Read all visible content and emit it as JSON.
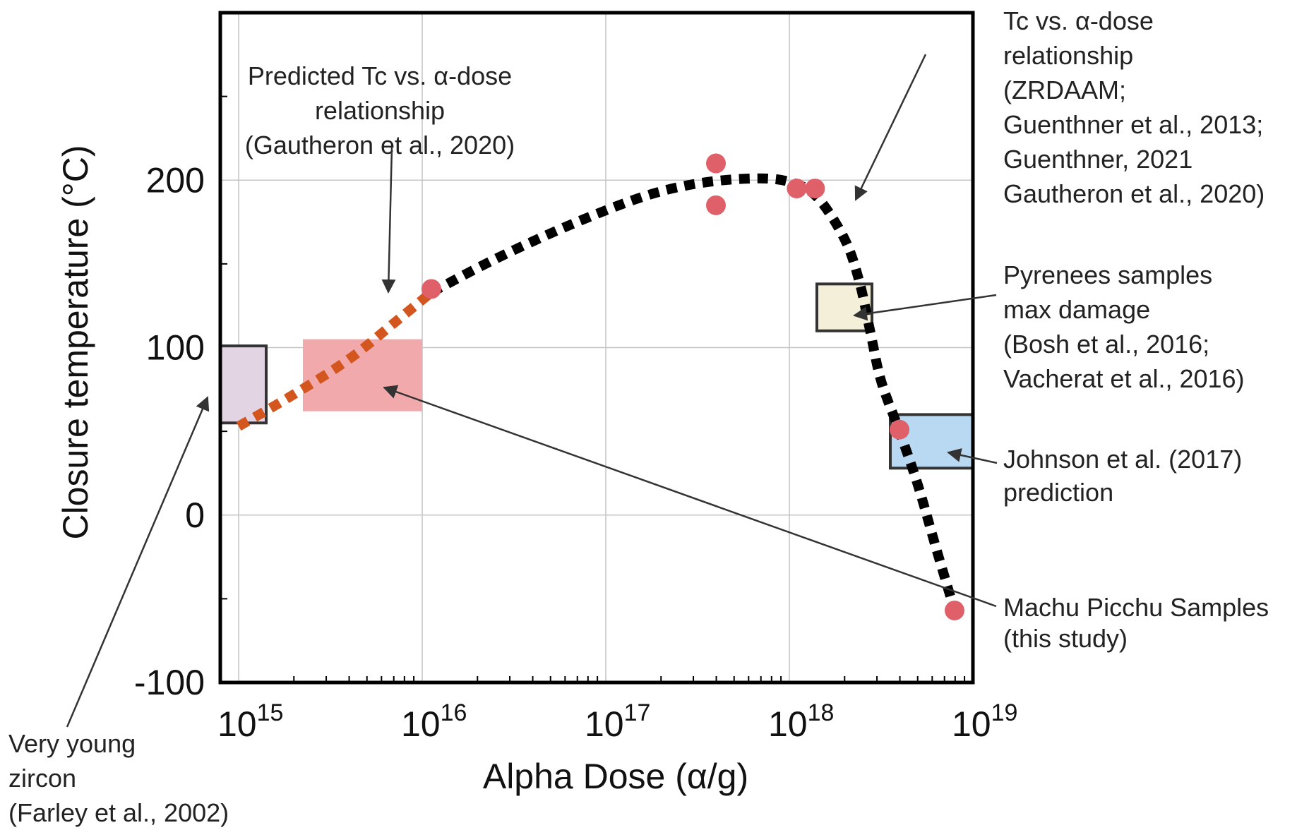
{
  "chart_data": {
    "type": "scatter",
    "xlabel": "Alpha Dose (α/g)",
    "ylabel": "Closure temperature (°C)",
    "xscale": "log10",
    "xlim_exponent": [
      14.9,
      19.0
    ],
    "ylim": [
      -100,
      300
    ],
    "grid": true,
    "xticks": [
      {
        "base": "10",
        "exp": "15",
        "value": 15
      },
      {
        "base": "10",
        "exp": "16",
        "value": 16
      },
      {
        "base": "10",
        "exp": "17",
        "value": 17
      },
      {
        "base": "10",
        "exp": "18",
        "value": 18
      },
      {
        "base": "10",
        "exp": "19",
        "value": 19
      }
    ],
    "yticks": [
      {
        "label": "-100",
        "value": -100
      },
      {
        "label": "0",
        "value": 0
      },
      {
        "label": "100",
        "value": 100
      },
      {
        "label": "200",
        "value": 200
      }
    ],
    "points": {
      "name": "Machu Picchu Samples (this study)",
      "color": "#e0606a",
      "data": [
        {
          "log_dose": 16.05,
          "tc": 135
        },
        {
          "log_dose": 17.6,
          "tc": 210
        },
        {
          "log_dose": 17.6,
          "tc": 185
        },
        {
          "log_dose": 18.04,
          "tc": 195
        },
        {
          "log_dose": 18.14,
          "tc": 195
        },
        {
          "log_dose": 18.6,
          "tc": 51
        },
        {
          "log_dose": 18.9,
          "tc": -57
        }
      ]
    },
    "curves": [
      {
        "name": "Predicted Tc vs. α-dose relationship (Gautheron et al., 2020)",
        "color": "#d4561f",
        "style": "dotted",
        "data": [
          [
            15.0,
            53
          ],
          [
            15.3,
            72
          ],
          [
            15.6,
            93
          ],
          [
            15.85,
            115
          ],
          [
            16.05,
            133
          ]
        ]
      },
      {
        "name": "Tc vs. α-dose relationship (ZRDAAM)",
        "color": "#000000",
        "style": "dotted",
        "data": [
          [
            16.05,
            133
          ],
          [
            16.4,
            153
          ],
          [
            16.8,
            173
          ],
          [
            17.2,
            190
          ],
          [
            17.5,
            198
          ],
          [
            17.8,
            201
          ],
          [
            18.0,
            199
          ],
          [
            18.15,
            190
          ],
          [
            18.3,
            165
          ],
          [
            18.38,
            140
          ],
          [
            18.44,
            110
          ],
          [
            18.5,
            80
          ],
          [
            18.6,
            50
          ],
          [
            18.7,
            18
          ],
          [
            18.8,
            -20
          ],
          [
            18.9,
            -57
          ]
        ]
      }
    ],
    "regions": [
      {
        "name": "Very young zircon (Farley et al., 2002)",
        "log_x": [
          14.9,
          15.15
        ],
        "y": [
          55,
          101
        ],
        "fill": "#e2d4e2",
        "stroke": "#333333"
      },
      {
        "name": "Predicted range",
        "log_x": [
          15.35,
          16.0
        ],
        "y": [
          62,
          105
        ],
        "fill": "#f2a9ab",
        "stroke": "none"
      },
      {
        "name": "Pyrenees samples max damage",
        "log_x": [
          18.15,
          18.45
        ],
        "y": [
          110,
          138
        ],
        "fill": "#f3efd8",
        "stroke": "#333333"
      },
      {
        "name": "Johnson et al. (2017) prediction",
        "log_x": [
          18.55,
          19.0
        ],
        "y": [
          28,
          60
        ],
        "fill": "#b9d8f1",
        "stroke": "#333333"
      }
    ],
    "annotations": [
      {
        "id": "gautheron",
        "lines": [
          "Predicted Tc vs. α-dose",
          "relationship",
          "(Gautheron et al., 2020)"
        ]
      },
      {
        "id": "zrdaam",
        "lines": [
          "Tc vs. α-dose",
          "relationship",
          "(ZRDAAM;",
          "Guenthner et al., 2013;",
          "Guenthner, 2021",
          "Gautheron et al., 2020)"
        ]
      },
      {
        "id": "pyrenees",
        "lines": [
          "Pyrenees samples",
          "max damage",
          "(Bosh et al., 2016;",
          "Vacherat et al., 2016)"
        ]
      },
      {
        "id": "johnson",
        "lines": [
          "Johnson et al. (2017)",
          "prediction"
        ]
      },
      {
        "id": "machu",
        "lines": [
          "Machu Picchu Samples",
          "(this study)"
        ]
      },
      {
        "id": "young",
        "lines": [
          "Very young",
          "zircon",
          "(Farley et al., 2002)"
        ]
      }
    ]
  }
}
